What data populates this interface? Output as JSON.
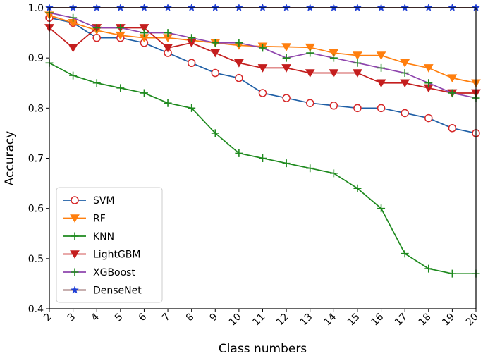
{
  "chart_data": {
    "type": "line",
    "title": "",
    "xlabel": "Class numbers",
    "ylabel": "Accuracy",
    "x": [
      2,
      3,
      4,
      5,
      6,
      7,
      8,
      9,
      10,
      11,
      12,
      13,
      14,
      15,
      16,
      17,
      18,
      19,
      20
    ],
    "xlim": [
      2,
      20
    ],
    "ylim": [
      0.4,
      1.0
    ],
    "yticks": [
      0.4,
      0.5,
      0.6,
      0.7,
      0.8,
      0.9,
      1.0
    ],
    "ytick_labels": [
      "0.4",
      "0.5",
      "0.6",
      "0.7",
      "0.8",
      "0.9",
      "1.0"
    ],
    "grid": false,
    "legend_position": "lower-left",
    "series": [
      {
        "name": "SVM",
        "color": "#1f5fa6",
        "marker": "circle-open",
        "marker_color": "#d62728",
        "values": [
          0.98,
          0.97,
          0.94,
          0.94,
          0.93,
          0.91,
          0.89,
          0.87,
          0.86,
          0.83,
          0.82,
          0.81,
          0.805,
          0.8,
          0.8,
          0.79,
          0.78,
          0.76,
          0.75
        ]
      },
      {
        "name": "RF",
        "color": "#ff7f0e",
        "marker": "triangle-down",
        "values": [
          0.985,
          0.97,
          0.955,
          0.945,
          0.94,
          0.94,
          0.935,
          0.93,
          0.925,
          0.923,
          0.922,
          0.921,
          0.91,
          0.905,
          0.905,
          0.89,
          0.88,
          0.86,
          0.85
        ]
      },
      {
        "name": "KNN",
        "color": "#1e8a1e",
        "marker": "plus",
        "values": [
          0.89,
          0.865,
          0.85,
          0.84,
          0.83,
          0.81,
          0.8,
          0.75,
          0.71,
          0.7,
          0.69,
          0.68,
          0.67,
          0.64,
          0.6,
          0.51,
          0.48,
          0.47,
          0.47
        ]
      },
      {
        "name": "LightGBM",
        "color": "#c41e1e",
        "marker": "triangle-down",
        "values": [
          0.96,
          0.92,
          0.96,
          0.96,
          0.96,
          0.92,
          0.93,
          0.91,
          0.89,
          0.88,
          0.88,
          0.87,
          0.87,
          0.87,
          0.85,
          0.85,
          0.84,
          0.83,
          0.83
        ]
      },
      {
        "name": "XGBoost",
        "color": "#8e44ad",
        "marker": "plus",
        "marker_color": "#1e8a1e",
        "values": [
          0.99,
          0.98,
          0.96,
          0.96,
          0.95,
          0.95,
          0.94,
          0.93,
          0.93,
          0.92,
          0.9,
          0.91,
          0.9,
          0.89,
          0.88,
          0.87,
          0.85,
          0.83,
          0.82
        ]
      },
      {
        "name": "DenseNet",
        "color": "#6b2d2d",
        "marker": "star",
        "marker_color": "#1f3fd6",
        "values": [
          1.0,
          1.0,
          1.0,
          1.0,
          1.0,
          1.0,
          1.0,
          1.0,
          1.0,
          1.0,
          1.0,
          1.0,
          1.0,
          1.0,
          1.0,
          1.0,
          1.0,
          1.0,
          1.0
        ]
      }
    ]
  }
}
